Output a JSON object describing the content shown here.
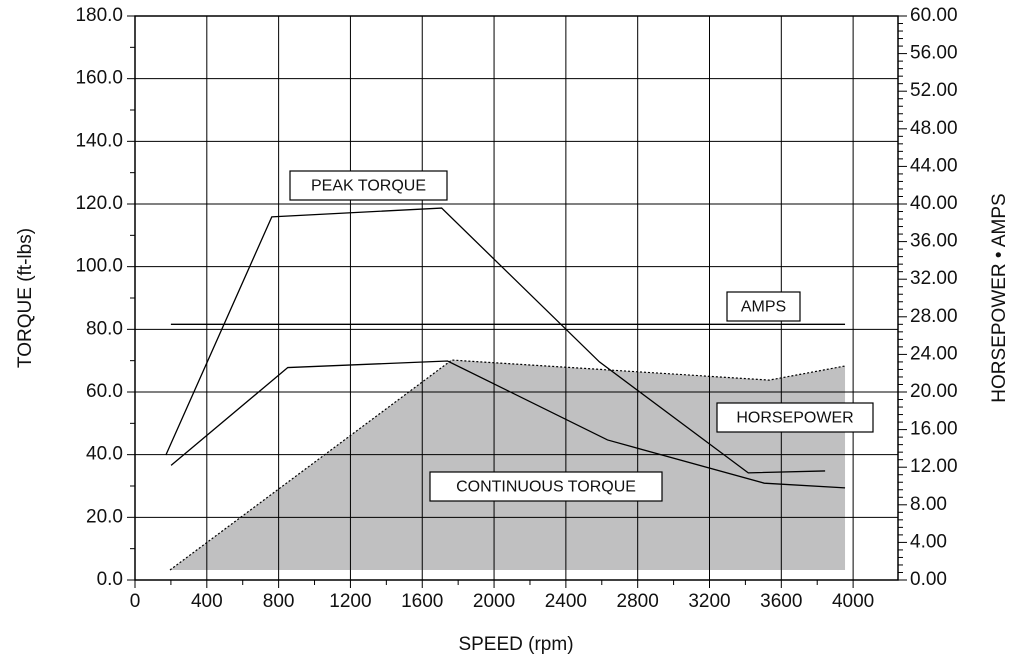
{
  "chart_data": {
    "type": "line",
    "xlabel": "SPEED (rpm)",
    "ylabel": "TORQUE (ft-lbs)",
    "y2label": "HORSEPOWER • AMPS",
    "xlim": [
      0,
      4250
    ],
    "xticks": [
      0,
      400,
      800,
      1200,
      1600,
      2000,
      2400,
      2800,
      3200,
      3600,
      4000
    ],
    "ylim": [
      0,
      180
    ],
    "yticks": [
      {
        "value": 0,
        "label": "0.0"
      },
      {
        "value": 20,
        "label": "20.0"
      },
      {
        "value": 40,
        "label": "40.0"
      },
      {
        "value": 60,
        "label": "60.0"
      },
      {
        "value": 80,
        "label": "80.0"
      },
      {
        "value": 100,
        "label": "100.0"
      },
      {
        "value": 120,
        "label": "120.0"
      },
      {
        "value": 140,
        "label": "140.0"
      },
      {
        "value": 160,
        "label": "160.0"
      },
      {
        "value": 180,
        "label": "180.0"
      }
    ],
    "y2lim": [
      0,
      60
    ],
    "y2ticks": [
      {
        "value": 0,
        "label": "0.00"
      },
      {
        "value": 4,
        "label": "4.00"
      },
      {
        "value": 8,
        "label": "8.00"
      },
      {
        "value": 12,
        "label": "12.00"
      },
      {
        "value": 16,
        "label": "16.00"
      },
      {
        "value": 20,
        "label": "20.00"
      },
      {
        "value": 24,
        "label": "24.00"
      },
      {
        "value": 28,
        "label": "28.00"
      },
      {
        "value": 32,
        "label": "32.00"
      },
      {
        "value": 36,
        "label": "36.00"
      },
      {
        "value": 40,
        "label": "40.00"
      },
      {
        "value": 44,
        "label": "44.00"
      },
      {
        "value": 48,
        "label": "48.00"
      },
      {
        "value": 52,
        "label": "52.00"
      },
      {
        "value": 56,
        "label": "56.00"
      },
      {
        "value": 60,
        "label": "60.00"
      }
    ],
    "grid": true,
    "series": [
      {
        "name": "CONTINUOUS TORQUE",
        "color": "#c0c0c1",
        "style": "area",
        "x": [
          195,
          1764,
          3533,
          3955
        ],
        "values": [
          3.2,
          70.2,
          63.8,
          68.3
        ]
      },
      {
        "name": "PEAK TORQUE",
        "color": "#000000",
        "x": [
          172,
          762,
          1708,
          2587,
          3416,
          3844
        ],
        "values": [
          39.9,
          115.9,
          118.7,
          69.6,
          34.2,
          34.8
        ]
      },
      {
        "name": "HORSEPOWER",
        "color": "#000000",
        "axis": "y2",
        "x": [
          201,
          851,
          1741,
          2632,
          3505,
          3955
        ],
        "values": [
          12.2,
          22.6,
          23.3,
          14.9,
          10.3,
          9.8
        ]
      },
      {
        "name": "AMPS",
        "color": "#000000",
        "axis": "y2",
        "x": [
          200,
          3955
        ],
        "values": [
          27.2,
          27.2
        ]
      }
    ]
  }
}
